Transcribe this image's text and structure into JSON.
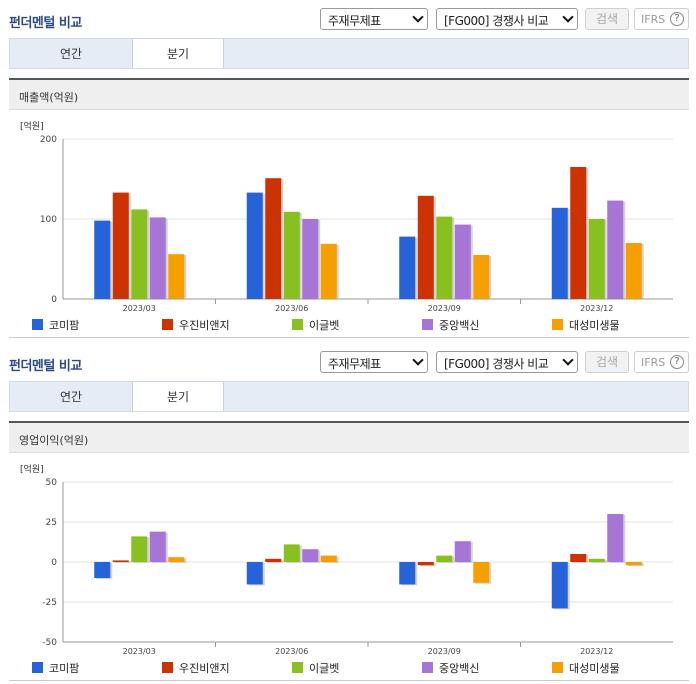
{
  "panels": [
    {
      "title": "펀더멘털 비교",
      "select_statement": "주재무제표",
      "select_compare": "[FG000] 경쟁사 비교",
      "search_label": "검색",
      "ifrs_label": "IFRS",
      "help_glyph": "?",
      "tabs": [
        "연간",
        "분기"
      ],
      "active_tab": "분기",
      "metric_label": "매출액(억원)"
    },
    {
      "title": "펀더멘털 비교",
      "select_statement": "주재무제표",
      "select_compare": "[FG000] 경쟁사 비교",
      "search_label": "검색",
      "ifrs_label": "IFRS",
      "help_glyph": "?",
      "tabs": [
        "연간",
        "분기"
      ],
      "active_tab": "분기",
      "metric_label": "영업이익(억원)"
    }
  ],
  "chart_data": [
    {
      "type": "bar",
      "title": "매출액(억원)",
      "unit_label": "[억원]",
      "categories": [
        "2023/03",
        "2023/06",
        "2023/09",
        "2023/12"
      ],
      "ylim": [
        0,
        200
      ],
      "yticks": [
        0,
        100,
        200
      ],
      "legend_position": "bottom",
      "series": [
        {
          "name": "코미팜",
          "color": "#2663d9",
          "values": [
            98,
            133,
            78,
            114
          ]
        },
        {
          "name": "우진비앤지",
          "color": "#cc3300",
          "values": [
            133,
            151,
            129,
            165
          ]
        },
        {
          "name": "이글벳",
          "color": "#88c020",
          "values": [
            112,
            109,
            103,
            100
          ]
        },
        {
          "name": "중앙백신",
          "color": "#a675d6",
          "values": [
            102,
            100,
            93,
            123
          ]
        },
        {
          "name": "대성미생물",
          "color": "#f5a000",
          "values": [
            56,
            69,
            55,
            70
          ]
        }
      ]
    },
    {
      "type": "bar",
      "title": "영업이익(억원)",
      "unit_label": "[억원]",
      "categories": [
        "2023/03",
        "2023/06",
        "2023/09",
        "2023/12"
      ],
      "ylim": [
        -50,
        50
      ],
      "yticks": [
        -50,
        -25,
        0,
        25,
        50
      ],
      "legend_position": "bottom",
      "series": [
        {
          "name": "코미팜",
          "color": "#2663d9",
          "values": [
            -10,
            -14,
            -14,
            -29
          ]
        },
        {
          "name": "우진비앤지",
          "color": "#cc3300",
          "values": [
            1,
            2,
            -2,
            5
          ]
        },
        {
          "name": "이글벳",
          "color": "#88c020",
          "values": [
            16,
            11,
            4,
            2
          ]
        },
        {
          "name": "중앙백신",
          "color": "#a675d6",
          "values": [
            19,
            8,
            13,
            30
          ]
        },
        {
          "name": "대성미생물",
          "color": "#f5a000",
          "values": [
            3,
            4,
            -13,
            -2
          ]
        }
      ]
    }
  ]
}
